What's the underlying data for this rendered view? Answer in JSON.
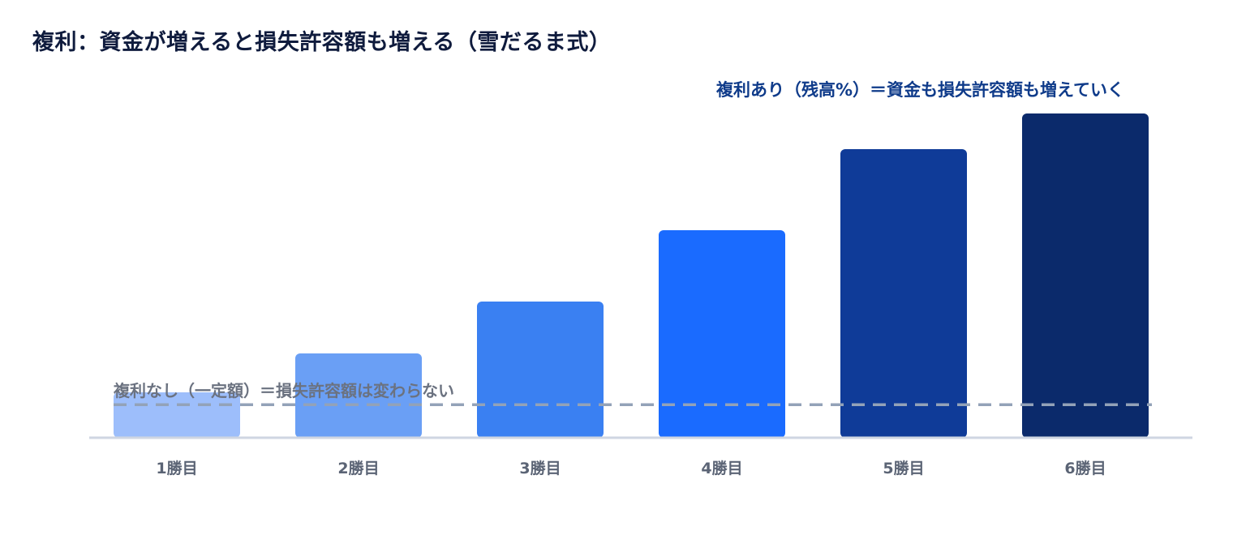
{
  "title": "複利：資金が増えると損失許容額も増える（雪だるま式）",
  "chart_data": {
    "type": "bar",
    "categories": [
      "1勝目",
      "2勝目",
      "3勝目",
      "4勝目",
      "5勝目",
      "6勝目"
    ],
    "values": [
      7,
      13,
      21,
      32,
      44.5,
      50
    ],
    "bar_colors": [
      "#9dbefb",
      "#6a9ff5",
      "#3a80f2",
      "#1a6bff",
      "#0f3b98",
      "#0b2a6b"
    ],
    "annotations": {
      "compound": {
        "text": "複利あり（残高%）＝資金も損失許容額も増えていく",
        "color": "#0f3b8a"
      },
      "flat": {
        "text": "複利なし（一定額）＝損失許容額は変わらない",
        "color": "#6b7280",
        "value": 5.1,
        "line_color": "#93a2b8"
      }
    },
    "ylim": [
      0,
      50
    ],
    "grid": false
  }
}
